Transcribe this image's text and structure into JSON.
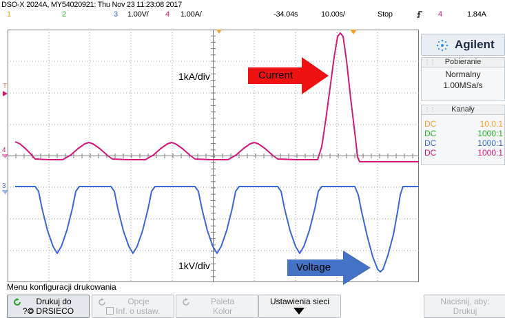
{
  "header": {
    "title": "DSO-X 2024A, MY54020921: Thu Nov 23 11:23:08 2017"
  },
  "status": {
    "ch1_label": "1",
    "ch2_label": "2",
    "ch3_label": "3",
    "ch3_scale": "1.00V/",
    "ch4_label": "4",
    "ch4_scale": "1.00A/",
    "time_offset": "-34.04s",
    "time_scale": "10.00s/",
    "run_state": "Stop",
    "trigger_icon": "trigger-edge-icon",
    "trig_channel": "4",
    "trig_level": "1.84A"
  },
  "colors": {
    "ch1": "#f0a030",
    "ch2": "#22b020",
    "ch3": "#3a66d6",
    "ch4": "#d4157a",
    "arrow_red": "#ee1111",
    "arrow_blue": "#4472c4"
  },
  "screen": {
    "current_scale_label": "1kA/div",
    "voltage_scale_label": "1kV/div",
    "current_annotation": "Current",
    "voltage_annotation": "Voltage",
    "marker_T": "T",
    "marker_4": "4",
    "marker_3": "3"
  },
  "panel": {
    "brand": "Agilent",
    "acq_header": "Pobieranie",
    "acq_mode": "Normalny",
    "acq_rate": "1.00MSa/s",
    "channels_header": "Kanały",
    "channels": [
      {
        "coupling": "DC",
        "ratio": "10.0:1"
      },
      {
        "coupling": "DC",
        "ratio": "1000:1"
      },
      {
        "coupling": "DC",
        "ratio": "1000:1"
      },
      {
        "coupling": "DC",
        "ratio": "1000:1"
      }
    ]
  },
  "menu": {
    "title": "Menu konfiguracji drukowania",
    "keys": {
      "print_to_label": "Drukuj do",
      "print_to_value": "DRSIECO",
      "options_label": "Opcje",
      "options_value": "Inf. o ustaw.",
      "palette_label": "Paleta",
      "palette_value": "Kolor",
      "network_label": "Ustawienia sieci",
      "press_label": "Naciśnij, aby:",
      "press_value": "Drukuj"
    }
  }
}
